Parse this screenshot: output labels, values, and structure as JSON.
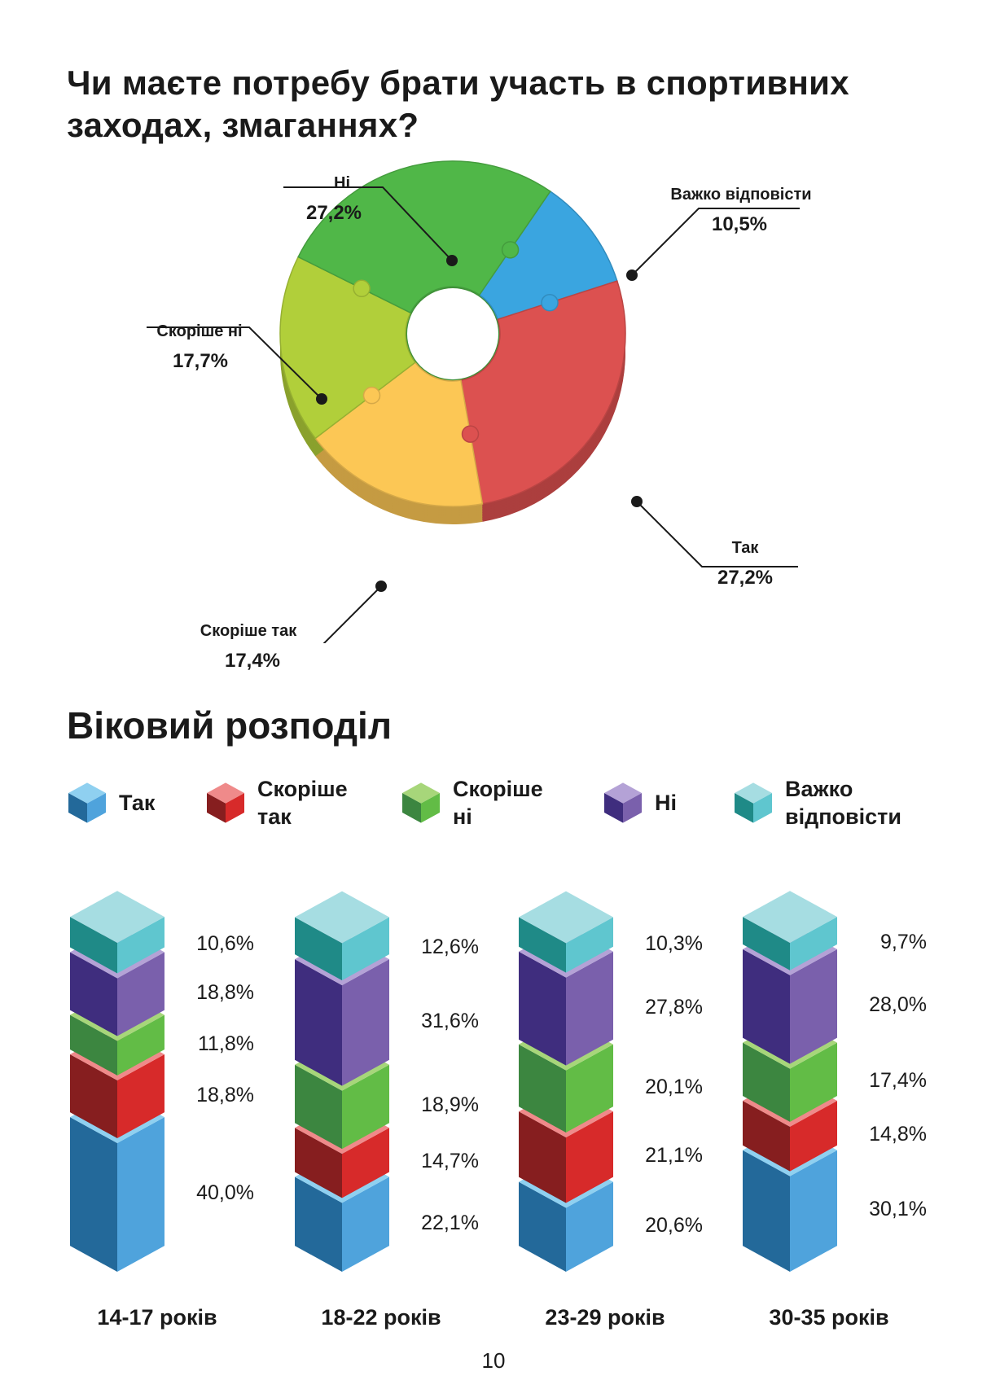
{
  "title": "Чи маєте потребу брати участь в спортивних заходах, змаганнях?",
  "section_title": "Віковий розподіл",
  "page_number": "10",
  "chart_data": [
    {
      "type": "pie",
      "title": "Чи маєте потребу брати участь в спортивних заходах, змаганнях?",
      "slices": [
        {
          "label": "Так",
          "value": 27.2,
          "display": "27,2%",
          "color": "#dc5150"
        },
        {
          "label": "Скоріше так",
          "value": 17.4,
          "display": "17,4%",
          "color": "#fcc755"
        },
        {
          "label": "Скоріше ні",
          "value": 17.7,
          "display": "17,7%",
          "color": "#b1cf3a"
        },
        {
          "label": "Ні",
          "value": 27.2,
          "display": "27,2%",
          "color": "#50b748"
        },
        {
          "label": "Важко відповісти",
          "value": 10.5,
          "display": "10,5%",
          "color": "#3aa5e0"
        }
      ]
    },
    {
      "type": "bar",
      "stacked": true,
      "title": "Віковий розподіл",
      "categories": [
        "14-17 років",
        "18-22 років",
        "23-29 років",
        "30-35 років"
      ],
      "series": [
        {
          "name": "Так",
          "values": [
            40.0,
            22.1,
            20.6,
            30.1
          ],
          "display": [
            "40,0%",
            "22,1%",
            "20,6%",
            "30,1%"
          ],
          "color": "#4fa3dc",
          "dark": "#23699a",
          "top": "#8fd0f0"
        },
        {
          "name": "Скоріше так",
          "values": [
            18.8,
            14.7,
            21.1,
            14.8
          ],
          "display": [
            "18,8%",
            "14,7%",
            "21,1%",
            "14,8%"
          ],
          "color": "#d72a2a",
          "dark": "#861e1f",
          "top": "#ef8a8a"
        },
        {
          "name": "Скоріше ні",
          "values": [
            11.8,
            18.9,
            20.1,
            17.4
          ],
          "display": [
            "11,8%",
            "18,9%",
            "20,1%",
            "17,4%"
          ],
          "color": "#62bc46",
          "dark": "#3c8640",
          "top": "#a7d67a"
        },
        {
          "name": "Ні",
          "values": [
            18.8,
            31.6,
            27.8,
            28.0
          ],
          "display": [
            "18,8%",
            "31,6%",
            "27,8%",
            "28,0%"
          ],
          "color": "#7a60ac",
          "dark": "#3f2d7e",
          "top": "#b4a2d6"
        },
        {
          "name": "Важко відповісти",
          "values": [
            10.6,
            12.6,
            10.3,
            9.7
          ],
          "display": [
            "10,6%",
            "12,6%",
            "10,3%",
            "9,7%"
          ],
          "color": "#5fc6cf",
          "dark": "#1f8a87",
          "top": "#a6dde2"
        }
      ]
    }
  ],
  "legend": [
    {
      "label": "Так"
    },
    {
      "label": "Скоріше так"
    },
    {
      "label": "Скоріше ні"
    },
    {
      "label": "Ні"
    },
    {
      "label": "Важко відповісти"
    }
  ]
}
